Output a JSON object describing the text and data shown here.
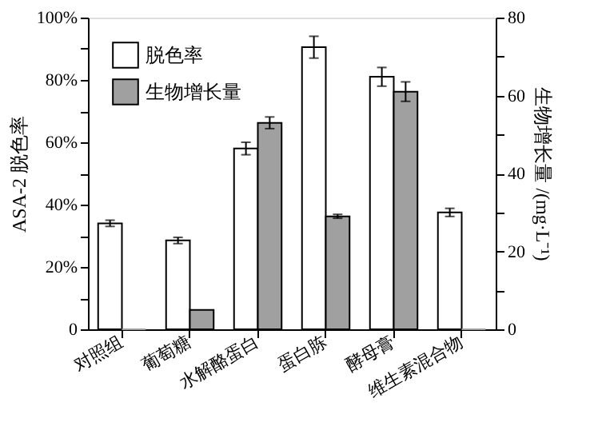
{
  "chart_data": {
    "type": "bar",
    "ylabel": "ASA-2 脱色率",
    "y2label": "生物增长量 /(mg·L⁻¹)",
    "categories": [
      "对照组",
      "葡萄糖",
      "水解酪蛋白",
      "蛋白胨",
      "酵母膏",
      "维生素混合物"
    ],
    "series": [
      {
        "name": "脱色率",
        "color": "#ffffff",
        "values": [
          34,
          28.5,
          58,
          90.5,
          81,
          37.5
        ],
        "errors": [
          1,
          1,
          2,
          3.5,
          3,
          1.3
        ]
      },
      {
        "name": "生物增长量",
        "color": "#a0a0a0",
        "axis": "y2",
        "values": [
          0,
          5,
          53,
          29,
          61,
          0
        ],
        "errors": [
          null,
          null,
          1.5,
          0.5,
          2.5,
          null
        ]
      }
    ],
    "ylim": [
      0,
      100
    ],
    "yticks": [
      {
        "value": 0,
        "label": "0"
      },
      {
        "value": 10,
        "label": null
      },
      {
        "value": 20,
        "label": "20%"
      },
      {
        "value": 30,
        "label": null
      },
      {
        "value": 40,
        "label": "40%"
      },
      {
        "value": 50,
        "label": null
      },
      {
        "value": 60,
        "label": "60%"
      },
      {
        "value": 70,
        "label": null
      },
      {
        "value": 80,
        "label": "80%"
      },
      {
        "value": 90,
        "label": null
      },
      {
        "value": 100,
        "label": "100%"
      }
    ],
    "y2lim": [
      0,
      80
    ],
    "y2ticks": [
      0,
      {
        "value": 10,
        "label": null
      },
      20,
      {
        "value": 30,
        "label": null
      },
      40,
      {
        "value": 50,
        "label": null
      },
      60,
      {
        "value": 70,
        "label": null
      },
      80
    ],
    "legend": "top left",
    "grid": false
  }
}
